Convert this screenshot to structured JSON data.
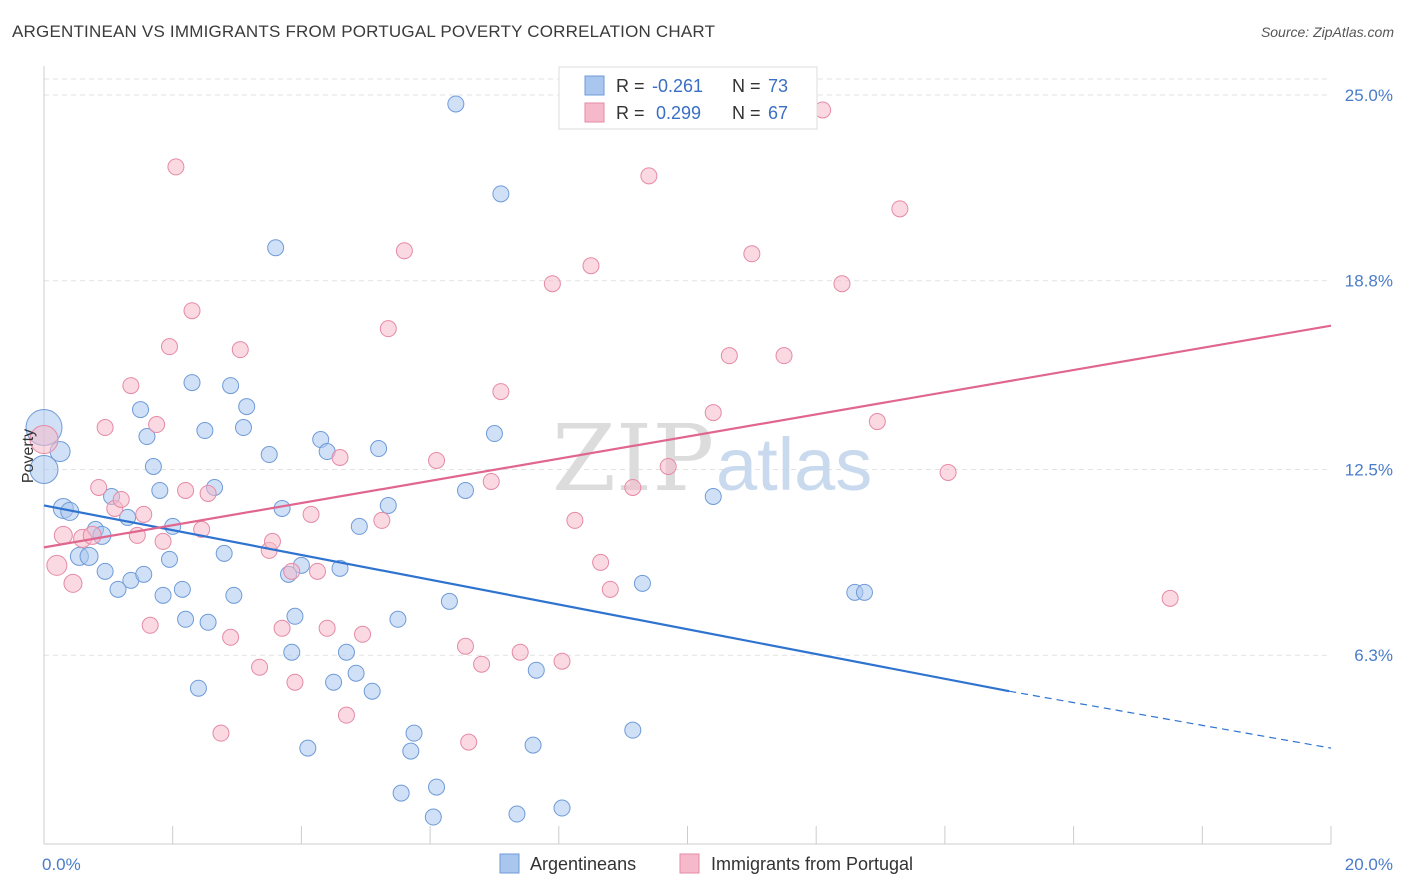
{
  "title": "ARGENTINEAN VS IMMIGRANTS FROM PORTUGAL POVERTY CORRELATION CHART",
  "source": "Source: ZipAtlas.com",
  "watermark": {
    "zip": "ZIP",
    "atlas": "atlas"
  },
  "legend_top": {
    "rows": [
      {
        "r_label": "R =",
        "r_value": "-0.261",
        "n_label": "N =",
        "n_value": "73"
      },
      {
        "r_label": "R =",
        "r_value": "0.299",
        "n_label": "N =",
        "n_value": "67"
      }
    ]
  },
  "legend_bottom": {
    "items": [
      "Argentineans",
      "Immigrants from Portugal"
    ]
  },
  "colors": {
    "blue_fill": "#a9c6ee",
    "blue_stroke": "#6f9bd8",
    "blue_line": "#2f73d0",
    "pink_fill": "#f6b9cb",
    "pink_stroke": "#e58aa6",
    "pink_line": "#e06690",
    "grid": "#e2e2e2",
    "tick_text": "#4a7cc9"
  },
  "chart_data": {
    "type": "scatter",
    "title": "ARGENTINEAN VS IMMIGRANTS FROM PORTUGAL POVERTY CORRELATION CHART",
    "xlabel": "",
    "ylabel": "Poverty",
    "xlim": [
      0,
      20
    ],
    "ylim": [
      0,
      25.5
    ],
    "x_tick_labels": [
      {
        "value": 0,
        "label": "0.0%"
      },
      {
        "value": 20,
        "label": "20.0%"
      }
    ],
    "y_tick_labels": [
      {
        "value": 6.3,
        "label": "6.3%"
      },
      {
        "value": 12.5,
        "label": "12.5%"
      },
      {
        "value": 18.8,
        "label": "18.8%"
      },
      {
        "value": 25.0,
        "label": "25.0%"
      }
    ],
    "grid": true,
    "legend_position": "top-center",
    "series": [
      {
        "name": "Argentineans",
        "r": -0.261,
        "n": 73,
        "trend": {
          "x": [
            0,
            15
          ],
          "y": [
            11.3,
            5.1
          ],
          "dashed_to": [
            20,
            3.2
          ]
        },
        "points": [
          [
            0.0,
            13.9,
            18
          ],
          [
            0.0,
            12.5,
            14
          ],
          [
            0.25,
            13.1,
            10
          ],
          [
            0.3,
            11.2,
            10
          ],
          [
            0.4,
            11.1,
            9
          ],
          [
            0.55,
            9.6,
            9
          ],
          [
            0.7,
            9.6,
            9
          ],
          [
            0.8,
            10.5,
            8
          ],
          [
            0.9,
            10.3,
            9
          ],
          [
            0.95,
            9.1,
            8
          ],
          [
            1.05,
            11.6,
            8
          ],
          [
            1.15,
            8.5,
            8
          ],
          [
            1.3,
            10.9,
            8
          ],
          [
            1.35,
            8.8,
            8
          ],
          [
            1.5,
            14.5,
            8
          ],
          [
            1.55,
            9.0,
            8
          ],
          [
            1.6,
            13.6,
            8
          ],
          [
            1.7,
            12.6,
            8
          ],
          [
            1.8,
            11.8,
            8
          ],
          [
            1.85,
            8.3,
            8
          ],
          [
            1.95,
            9.5,
            8
          ],
          [
            2.0,
            10.6,
            8
          ],
          [
            2.15,
            8.5,
            8
          ],
          [
            2.2,
            7.5,
            8
          ],
          [
            2.3,
            15.4,
            8
          ],
          [
            2.4,
            5.2,
            8
          ],
          [
            2.5,
            13.8,
            8
          ],
          [
            2.55,
            7.4,
            8
          ],
          [
            2.65,
            11.9,
            8
          ],
          [
            2.8,
            9.7,
            8
          ],
          [
            2.9,
            15.3,
            8
          ],
          [
            2.95,
            8.3,
            8
          ],
          [
            3.1,
            13.9,
            8
          ],
          [
            3.15,
            14.6,
            8
          ],
          [
            3.5,
            13.0,
            8
          ],
          [
            3.6,
            19.9,
            8
          ],
          [
            3.7,
            11.2,
            8
          ],
          [
            3.8,
            9.0,
            8
          ],
          [
            3.85,
            6.4,
            8
          ],
          [
            3.9,
            7.6,
            8
          ],
          [
            4.0,
            9.3,
            8
          ],
          [
            4.1,
            3.2,
            8
          ],
          [
            4.3,
            13.5,
            8
          ],
          [
            4.4,
            13.1,
            8
          ],
          [
            4.5,
            5.4,
            8
          ],
          [
            4.6,
            9.2,
            8
          ],
          [
            4.7,
            6.4,
            8
          ],
          [
            4.85,
            5.7,
            8
          ],
          [
            4.9,
            10.6,
            8
          ],
          [
            5.2,
            13.2,
            8
          ],
          [
            5.1,
            5.1,
            8
          ],
          [
            5.35,
            11.3,
            8
          ],
          [
            5.5,
            7.5,
            8
          ],
          [
            5.55,
            1.7,
            8
          ],
          [
            5.7,
            3.1,
            8
          ],
          [
            5.75,
            3.7,
            8
          ],
          [
            6.05,
            0.9,
            8
          ],
          [
            6.1,
            1.9,
            8
          ],
          [
            6.3,
            8.1,
            8
          ],
          [
            6.4,
            24.7,
            8
          ],
          [
            6.55,
            11.8,
            8
          ],
          [
            7.0,
            13.7,
            8
          ],
          [
            7.1,
            21.7,
            8
          ],
          [
            7.35,
            1.0,
            8
          ],
          [
            7.6,
            3.3,
            8
          ],
          [
            7.65,
            5.8,
            8
          ],
          [
            8.05,
            1.2,
            8
          ],
          [
            9.15,
            3.8,
            8
          ],
          [
            9.3,
            8.7,
            8
          ],
          [
            10.4,
            11.6,
            8
          ],
          [
            12.6,
            8.4,
            8
          ],
          [
            12.75,
            8.4,
            8
          ]
        ]
      },
      {
        "name": "Immigrants from Portugal",
        "r": 0.299,
        "n": 67,
        "trend": {
          "x": [
            0,
            20
          ],
          "y": [
            9.9,
            17.3
          ]
        },
        "points": [
          [
            0.0,
            13.5,
            14
          ],
          [
            0.2,
            9.3,
            10
          ],
          [
            0.3,
            10.3,
            9
          ],
          [
            0.45,
            8.7,
            9
          ],
          [
            0.6,
            10.2,
            9
          ],
          [
            0.75,
            10.3,
            9
          ],
          [
            0.85,
            11.9,
            8
          ],
          [
            0.95,
            13.9,
            8
          ],
          [
            1.1,
            11.2,
            8
          ],
          [
            1.2,
            11.5,
            8
          ],
          [
            1.35,
            15.3,
            8
          ],
          [
            1.45,
            10.3,
            8
          ],
          [
            1.55,
            11.0,
            8
          ],
          [
            1.65,
            7.3,
            8
          ],
          [
            1.75,
            14.0,
            8
          ],
          [
            1.85,
            10.1,
            8
          ],
          [
            1.95,
            16.6,
            8
          ],
          [
            2.05,
            22.6,
            8
          ],
          [
            2.2,
            11.8,
            8
          ],
          [
            2.3,
            17.8,
            8
          ],
          [
            2.45,
            10.5,
            8
          ],
          [
            2.55,
            11.7,
            8
          ],
          [
            2.75,
            3.7,
            8
          ],
          [
            2.9,
            6.9,
            8
          ],
          [
            3.05,
            16.5,
            8
          ],
          [
            3.35,
            5.9,
            8
          ],
          [
            3.5,
            9.8,
            8
          ],
          [
            3.55,
            10.1,
            8
          ],
          [
            3.7,
            7.2,
            8
          ],
          [
            3.85,
            9.1,
            8
          ],
          [
            3.9,
            5.4,
            8
          ],
          [
            4.15,
            11.0,
            8
          ],
          [
            4.25,
            9.1,
            8
          ],
          [
            4.4,
            7.2,
            8
          ],
          [
            4.6,
            12.9,
            8
          ],
          [
            4.7,
            4.3,
            8
          ],
          [
            4.95,
            7.0,
            8
          ],
          [
            5.25,
            10.8,
            8
          ],
          [
            5.35,
            17.2,
            8
          ],
          [
            5.6,
            19.8,
            8
          ],
          [
            6.1,
            12.8,
            8
          ],
          [
            6.55,
            6.6,
            8
          ],
          [
            6.6,
            3.4,
            8
          ],
          [
            6.8,
            6.0,
            8
          ],
          [
            6.95,
            12.1,
            8
          ],
          [
            7.1,
            15.1,
            8
          ],
          [
            7.4,
            6.4,
            8
          ],
          [
            7.9,
            18.7,
            8
          ],
          [
            8.05,
            6.1,
            8
          ],
          [
            8.25,
            10.8,
            8
          ],
          [
            8.5,
            19.3,
            8
          ],
          [
            8.65,
            9.4,
            8
          ],
          [
            8.8,
            8.5,
            8
          ],
          [
            9.15,
            11.9,
            8
          ],
          [
            9.4,
            22.3,
            8
          ],
          [
            9.7,
            12.6,
            8
          ],
          [
            10.4,
            14.4,
            8
          ],
          [
            10.65,
            16.3,
            8
          ],
          [
            11.0,
            19.7,
            8
          ],
          [
            11.5,
            16.3,
            8
          ],
          [
            12.4,
            18.7,
            8
          ],
          [
            12.95,
            14.1,
            8
          ],
          [
            13.3,
            21.2,
            8
          ],
          [
            14.05,
            12.4,
            8
          ],
          [
            17.5,
            8.2,
            8
          ],
          [
            12.1,
            24.5,
            8
          ]
        ]
      }
    ]
  }
}
